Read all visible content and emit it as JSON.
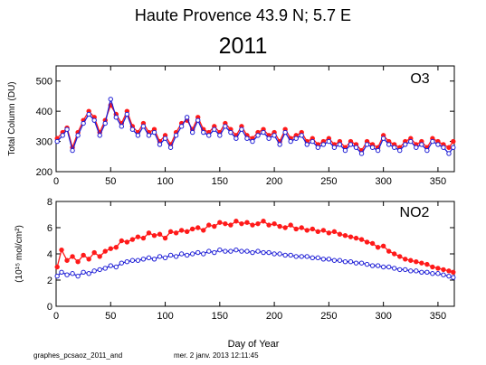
{
  "header": {
    "station_title": "Haute Provence  43.9 N; 5.7 E",
    "year_title": "2011"
  },
  "footer": {
    "file_label": "graphes_pcsaoz_2011_and",
    "timestamp": "mer. 2 janv. 2013 12:11:45"
  },
  "colors": {
    "series_red": "#ff1a1a",
    "series_blue": "#1f1fd6",
    "axis": "#000000"
  },
  "chart_data": [
    {
      "type": "scatter",
      "panel_label": "O3",
      "ylabel": "Total Column (DU)",
      "xlabel": "",
      "xlim": [
        0,
        365
      ],
      "ylim": [
        200,
        550
      ],
      "xticks": [
        0,
        50,
        100,
        150,
        200,
        250,
        300,
        350
      ],
      "yticks": [
        200,
        300,
        400,
        500
      ],
      "grid": false,
      "series": [
        {
          "color": "#ff1a1a",
          "marker": "filled-dot",
          "connected": true,
          "x": [
            1,
            6,
            10,
            15,
            20,
            25,
            30,
            35,
            40,
            45,
            50,
            55,
            60,
            65,
            70,
            75,
            80,
            85,
            90,
            95,
            100,
            105,
            110,
            115,
            120,
            125,
            130,
            135,
            140,
            145,
            150,
            155,
            160,
            165,
            170,
            175,
            180,
            185,
            190,
            195,
            200,
            205,
            210,
            215,
            220,
            225,
            230,
            235,
            240,
            245,
            250,
            255,
            260,
            265,
            270,
            275,
            280,
            285,
            290,
            295,
            300,
            305,
            310,
            315,
            320,
            325,
            330,
            335,
            340,
            345,
            350,
            355,
            360,
            364
          ],
          "values": [
            310,
            330,
            345,
            280,
            330,
            370,
            400,
            380,
            330,
            370,
            420,
            390,
            360,
            400,
            350,
            330,
            360,
            330,
            340,
            300,
            320,
            290,
            330,
            360,
            370,
            340,
            380,
            340,
            330,
            350,
            330,
            360,
            340,
            320,
            350,
            320,
            310,
            330,
            340,
            320,
            330,
            300,
            340,
            310,
            320,
            330,
            300,
            310,
            290,
            300,
            310,
            290,
            300,
            280,
            300,
            290,
            270,
            300,
            290,
            280,
            320,
            300,
            290,
            280,
            300,
            310,
            290,
            300,
            280,
            310,
            300,
            290,
            280,
            300
          ]
        },
        {
          "color": "#1f1fd6",
          "marker": "open-circle",
          "connected": true,
          "x": [
            1,
            6,
            10,
            15,
            20,
            25,
            30,
            35,
            40,
            45,
            50,
            55,
            60,
            65,
            70,
            75,
            80,
            85,
            90,
            95,
            100,
            105,
            110,
            115,
            120,
            125,
            130,
            135,
            140,
            145,
            150,
            155,
            160,
            165,
            170,
            175,
            180,
            185,
            190,
            195,
            200,
            205,
            210,
            215,
            220,
            225,
            230,
            235,
            240,
            245,
            250,
            255,
            260,
            265,
            270,
            275,
            280,
            285,
            290,
            295,
            300,
            305,
            310,
            315,
            320,
            325,
            330,
            335,
            340,
            345,
            350,
            355,
            360,
            364
          ],
          "values": [
            300,
            320,
            340,
            270,
            320,
            360,
            390,
            370,
            320,
            360,
            440,
            380,
            350,
            390,
            340,
            320,
            350,
            320,
            330,
            290,
            310,
            280,
            320,
            350,
            380,
            330,
            370,
            330,
            320,
            340,
            320,
            350,
            330,
            310,
            340,
            310,
            300,
            320,
            330,
            310,
            320,
            290,
            330,
            300,
            310,
            320,
            290,
            300,
            280,
            290,
            300,
            280,
            290,
            270,
            290,
            280,
            260,
            290,
            280,
            270,
            310,
            290,
            280,
            270,
            290,
            300,
            280,
            290,
            270,
            300,
            290,
            280,
            260,
            280
          ]
        }
      ]
    },
    {
      "type": "scatter",
      "panel_label": "NO2",
      "ylabel": "(10¹⁵ mol/cm²)",
      "xlabel": "Day of Year",
      "xlim": [
        0,
        365
      ],
      "ylim": [
        0,
        8
      ],
      "xticks": [
        0,
        50,
        100,
        150,
        200,
        250,
        300,
        350
      ],
      "yticks": [
        0,
        2,
        4,
        6,
        8
      ],
      "grid": false,
      "series": [
        {
          "color": "#ff1a1a",
          "marker": "filled-dot",
          "connected": true,
          "x": [
            1,
            5,
            10,
            15,
            20,
            25,
            30,
            35,
            40,
            45,
            50,
            55,
            60,
            65,
            70,
            75,
            80,
            85,
            90,
            95,
            100,
            105,
            110,
            115,
            120,
            125,
            130,
            135,
            140,
            145,
            150,
            155,
            160,
            165,
            170,
            175,
            180,
            185,
            190,
            195,
            200,
            205,
            210,
            215,
            220,
            225,
            230,
            235,
            240,
            245,
            250,
            255,
            260,
            265,
            270,
            275,
            280,
            285,
            290,
            295,
            300,
            305,
            310,
            315,
            320,
            325,
            330,
            335,
            340,
            345,
            350,
            355,
            360,
            364
          ],
          "values": [
            3.0,
            4.3,
            3.5,
            3.8,
            3.4,
            3.9,
            3.6,
            4.1,
            3.8,
            4.2,
            4.4,
            4.5,
            5.0,
            4.9,
            5.1,
            5.3,
            5.2,
            5.6,
            5.4,
            5.5,
            5.2,
            5.7,
            5.6,
            5.8,
            5.7,
            5.9,
            6.0,
            5.8,
            6.2,
            6.1,
            6.4,
            6.3,
            6.2,
            6.5,
            6.3,
            6.4,
            6.2,
            6.3,
            6.5,
            6.2,
            6.3,
            6.1,
            6.0,
            6.2,
            5.9,
            6.0,
            5.8,
            5.9,
            5.7,
            5.8,
            5.6,
            5.7,
            5.5,
            5.4,
            5.3,
            5.2,
            5.1,
            4.9,
            4.8,
            4.5,
            4.6,
            4.2,
            4.0,
            3.8,
            3.6,
            3.5,
            3.4,
            3.3,
            3.2,
            3.0,
            2.9,
            2.8,
            2.7,
            2.6
          ]
        },
        {
          "color": "#1f1fd6",
          "marker": "open-circle",
          "connected": true,
          "x": [
            1,
            5,
            10,
            15,
            20,
            25,
            30,
            35,
            40,
            45,
            50,
            55,
            60,
            65,
            70,
            75,
            80,
            85,
            90,
            95,
            100,
            105,
            110,
            115,
            120,
            125,
            130,
            135,
            140,
            145,
            150,
            155,
            160,
            165,
            170,
            175,
            180,
            185,
            190,
            195,
            200,
            205,
            210,
            215,
            220,
            225,
            230,
            235,
            240,
            245,
            250,
            255,
            260,
            265,
            270,
            275,
            280,
            285,
            290,
            295,
            300,
            305,
            310,
            315,
            320,
            325,
            330,
            335,
            340,
            345,
            350,
            355,
            360,
            364
          ],
          "values": [
            2.3,
            2.6,
            2.4,
            2.5,
            2.3,
            2.6,
            2.5,
            2.7,
            2.8,
            2.9,
            3.1,
            3.0,
            3.3,
            3.4,
            3.5,
            3.5,
            3.6,
            3.7,
            3.6,
            3.8,
            3.7,
            3.9,
            3.8,
            4.0,
            3.9,
            4.0,
            4.1,
            4.0,
            4.2,
            4.1,
            4.3,
            4.2,
            4.2,
            4.3,
            4.2,
            4.2,
            4.1,
            4.2,
            4.1,
            4.1,
            4.0,
            4.0,
            3.9,
            3.9,
            3.8,
            3.8,
            3.8,
            3.7,
            3.7,
            3.6,
            3.6,
            3.5,
            3.5,
            3.4,
            3.4,
            3.3,
            3.3,
            3.2,
            3.1,
            3.1,
            3.0,
            3.0,
            2.9,
            2.8,
            2.8,
            2.7,
            2.7,
            2.6,
            2.6,
            2.5,
            2.5,
            2.4,
            2.3,
            2.2
          ]
        }
      ]
    }
  ]
}
